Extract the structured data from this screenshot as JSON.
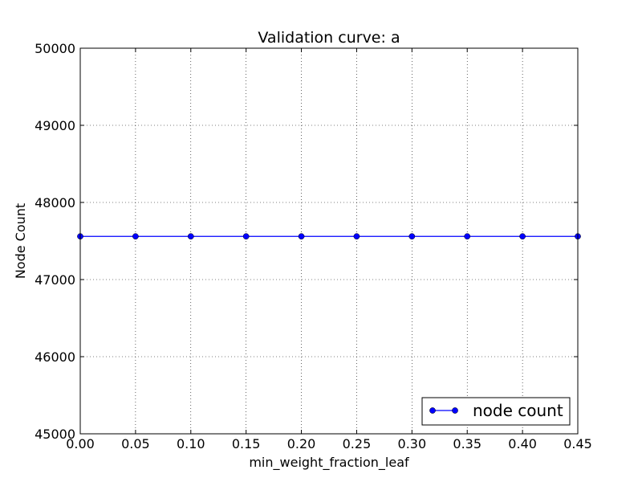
{
  "chart_data": {
    "type": "line",
    "title": "Validation curve: a",
    "xlabel": "min_weight_fraction_leaf",
    "ylabel": "Node Count",
    "xlim": [
      0.0,
      0.45
    ],
    "ylim": [
      45000,
      50000
    ],
    "x": [
      0.0,
      0.05,
      0.1,
      0.15,
      0.2,
      0.25,
      0.3,
      0.35,
      0.4,
      0.45
    ],
    "x_tick_labels": [
      "0.00",
      "0.05",
      "0.10",
      "0.15",
      "0.20",
      "0.25",
      "0.30",
      "0.35",
      "0.40",
      "0.45"
    ],
    "y_ticks": [
      45000,
      46000,
      47000,
      48000,
      49000,
      50000
    ],
    "y_tick_labels": [
      "45000",
      "46000",
      "47000",
      "48000",
      "49000",
      "50000"
    ],
    "series": [
      {
        "name": "node count",
        "color": "#0000ff",
        "marker": "circle",
        "values": [
          47560,
          47560,
          47560,
          47560,
          47560,
          47560,
          47560,
          47560,
          47560,
          47560
        ]
      }
    ],
    "grid": true,
    "grid_style": "dotted",
    "legend_position": "lower-right"
  }
}
